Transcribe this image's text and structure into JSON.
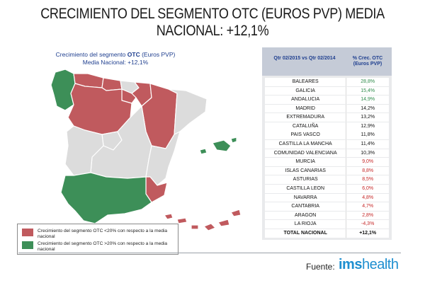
{
  "title": "CRECIMIENTO DEL SEGMENTO OTC (EUROS PVP) MEDIA NACIONAL: +12,1%",
  "map": {
    "caption_line1_pre": "Crecimiento del segmento ",
    "caption_line1_bold": "OTC",
    "caption_line1_post": " (Euros PVP)",
    "caption_line2": "Media Nacional:  +12,1%",
    "colors": {
      "above": "#3d8f58",
      "below": "#c05a5e",
      "neutral": "#dcdcdc",
      "border": "#ffffff"
    }
  },
  "legend": {
    "items": [
      {
        "text": "Crecimiento del segmento OTC <20% con respecto a la media nacional",
        "color": "#c05a5e"
      },
      {
        "text": "Crecimiento del segmento OTC >20% con respecto a la media nacional",
        "color": "#3d8f58"
      }
    ]
  },
  "table": {
    "header_region": "Qtr 02/2015 vs Qtr 02/2014",
    "header_value": "% Crec. OTC (Euros PVP)",
    "rows": [
      {
        "region": "BALEARES",
        "value": "28,8%",
        "status": "green"
      },
      {
        "region": "GALICIA",
        "value": "15,4%",
        "status": "green"
      },
      {
        "region": "ANDALUCIA",
        "value": "14,9%",
        "status": "green"
      },
      {
        "region": "MADRID",
        "value": "14,2%",
        "status": "neutral"
      },
      {
        "region": "EXTREMADURA",
        "value": "13,2%",
        "status": "neutral"
      },
      {
        "region": "CATALUÑA",
        "value": "12,9%",
        "status": "neutral"
      },
      {
        "region": "PAIS VASCO",
        "value": "11,8%",
        "status": "neutral"
      },
      {
        "region": "CASTILLA LA MANCHA",
        "value": "11,4%",
        "status": "neutral"
      },
      {
        "region": "COMUNIDAD VALENCIANA",
        "value": "10,3%",
        "status": "neutral"
      },
      {
        "region": "MURCIA",
        "value": "9,0%",
        "status": "red"
      },
      {
        "region": "ISLAS CANARIAS",
        "value": "8,8%",
        "status": "red"
      },
      {
        "region": "ASTURIAS",
        "value": "8,5%",
        "status": "red"
      },
      {
        "region": "CASTILLA LEON",
        "value": "6,0%",
        "status": "red"
      },
      {
        "region": "NAVARRA",
        "value": "4,8%",
        "status": "red"
      },
      {
        "region": "CANTABRIA",
        "value": "4,7%",
        "status": "red"
      },
      {
        "region": "ARAGON",
        "value": "2,8%",
        "status": "red"
      },
      {
        "region": "LA RIOJA",
        "value": "-4,3%",
        "status": "red"
      }
    ],
    "total": {
      "region": "TOTAL NACIONAL",
      "value": "+12,1%"
    }
  },
  "footer": {
    "source_label": "Fuente:",
    "brand_bold": "ims",
    "brand_rest": "health"
  }
}
